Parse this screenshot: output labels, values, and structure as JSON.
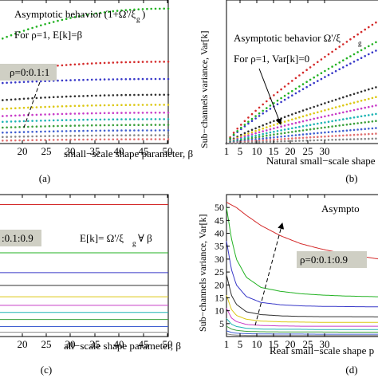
{
  "chart_data": [
    {
      "type": "scatter",
      "panel_caption": "(a)",
      "xlabel": "small−scale shape parameter, β",
      "ylabel": "",
      "xticks": [
        "20",
        "25",
        "30",
        "35",
        "40",
        "45",
        "50"
      ],
      "xlim": [
        16,
        50
      ],
      "ylim": [
        0,
        1
      ],
      "grid": false,
      "annotations": [
        "Asymptotic behavior (1+Ω'/ξ",
        "g",
        ")",
        "For ρ=1, E[k]=β",
        "ρ=0:0.1:1"
      ],
      "series": [
        {
          "color": "#22b222",
          "x": [
            16,
            50
          ],
          "y": [
            0.72,
            0.94
          ]
        },
        {
          "color": "#d42a2a",
          "x": [
            16,
            50
          ],
          "y": [
            0.5,
            0.57
          ]
        },
        {
          "color": "#3838c8",
          "x": [
            16,
            50
          ],
          "y": [
            0.42,
            0.45
          ]
        },
        {
          "color": "#303030",
          "x": [
            16,
            50
          ],
          "y": [
            0.3,
            0.34
          ]
        },
        {
          "color": "#dcc814",
          "x": [
            16,
            50
          ],
          "y": [
            0.24,
            0.27
          ]
        },
        {
          "color": "#c83cc8",
          "x": [
            16,
            50
          ],
          "y": [
            0.19,
            0.215
          ]
        },
        {
          "color": "#1eb4b4",
          "x": [
            16,
            50
          ],
          "y": [
            0.15,
            0.17
          ]
        },
        {
          "color": "#3ca03c",
          "x": [
            16,
            50
          ],
          "y": [
            0.11,
            0.13
          ]
        },
        {
          "color": "#4060d0",
          "x": [
            16,
            50
          ],
          "y": [
            0.075,
            0.092
          ]
        },
        {
          "color": "#888888",
          "x": [
            16,
            50
          ],
          "y": [
            0.045,
            0.058
          ]
        },
        {
          "color": "#e07070",
          "x": [
            16,
            50
          ],
          "y": [
            0.02,
            0.03
          ]
        }
      ]
    },
    {
      "type": "scatter",
      "panel_caption": "(b)",
      "xlabel": "Natural small−scale shape",
      "ylabel": "Sub−channels variance, Var[k]",
      "xticks": [
        "1",
        "5",
        "10",
        "15",
        "20",
        "25",
        "30"
      ],
      "xlim": [
        1,
        32
      ],
      "ylim": [
        0,
        1
      ],
      "grid": false,
      "annotations": [
        "Asymptotic behavior Ω'/ξ",
        "g",
        "For ρ=1, Var[k]=0"
      ],
      "series": [
        {
          "color": "#d42a2a",
          "x": [
            1,
            32
          ],
          "y": [
            0.0,
            0.86
          ]
        },
        {
          "color": "#3838c8",
          "x": [
            1,
            32
          ],
          "y": [
            0.0,
            0.66
          ]
        },
        {
          "color": "#22b222",
          "x": [
            1,
            32
          ],
          "y": [
            0.0,
            0.72
          ]
        },
        {
          "color": "#303030",
          "x": [
            1,
            32
          ],
          "y": [
            0.0,
            0.4
          ]
        },
        {
          "color": "#dcc814",
          "x": [
            1,
            32
          ],
          "y": [
            0.0,
            0.33
          ]
        },
        {
          "color": "#c83cc8",
          "x": [
            1,
            32
          ],
          "y": [
            0.0,
            0.27
          ]
        },
        {
          "color": "#1eb4b4",
          "x": [
            1,
            32
          ],
          "y": [
            0.0,
            0.21
          ]
        },
        {
          "color": "#3ca03c",
          "x": [
            1,
            32
          ],
          "y": [
            0.0,
            0.16
          ]
        },
        {
          "color": "#4060d0",
          "x": [
            1,
            32
          ],
          "y": [
            0.0,
            0.11
          ]
        },
        {
          "color": "#e07070",
          "x": [
            1,
            32
          ],
          "y": [
            0.0,
            0.07
          ]
        },
        {
          "color": "#888888",
          "x": [
            1,
            32
          ],
          "y": [
            0.0,
            0.035
          ]
        }
      ]
    },
    {
      "type": "line",
      "panel_caption": "(c)",
      "xlabel": "all−scale shape parameter, β",
      "ylabel": "",
      "xticks": [
        "20",
        "25",
        "30",
        "35",
        "40",
        "45",
        "50"
      ],
      "xlim": [
        16,
        50
      ],
      "ylim": [
        0,
        1
      ],
      "grid": false,
      "annotations": [
        "E[k]= Ω'/ξ",
        "g",
        " ∀ β",
        ":0.1:0.9"
      ],
      "series": [
        {
          "color": "#d42a2a",
          "x": [
            16,
            50
          ],
          "y": [
            0.93,
            0.93
          ]
        },
        {
          "color": "#22b222",
          "x": [
            16,
            50
          ],
          "y": [
            0.59,
            0.59
          ]
        },
        {
          "color": "#3838c8",
          "x": [
            16,
            50
          ],
          "y": [
            0.45,
            0.45
          ]
        },
        {
          "color": "#303030",
          "x": [
            16,
            50
          ],
          "y": [
            0.36,
            0.36
          ]
        },
        {
          "color": "#dcc814",
          "x": [
            16,
            50
          ],
          "y": [
            0.28,
            0.28
          ]
        },
        {
          "color": "#c83cc8",
          "x": [
            16,
            50
          ],
          "y": [
            0.22,
            0.22
          ]
        },
        {
          "color": "#1eb4b4",
          "x": [
            16,
            50
          ],
          "y": [
            0.17,
            0.17
          ]
        },
        {
          "color": "#3ca03c",
          "x": [
            16,
            50
          ],
          "y": [
            0.12,
            0.12
          ]
        },
        {
          "color": "#4060d0",
          "x": [
            16,
            50
          ],
          "y": [
            0.07,
            0.07
          ]
        },
        {
          "color": "#888888",
          "x": [
            16,
            50
          ],
          "y": [
            0.03,
            0.03
          ]
        }
      ]
    },
    {
      "type": "line",
      "panel_caption": "(d)",
      "xlabel": "Real small−scale shape p",
      "ylabel": "Sub−channels variance, Var[k]",
      "xticks": [
        "1",
        "5",
        "10",
        "15",
        "20",
        "25",
        "30"
      ],
      "xlim": [
        1,
        32
      ],
      "ylim": [
        0,
        55
      ],
      "yticks": [
        "5",
        "10",
        "15",
        "20",
        "25",
        "30",
        "35",
        "40",
        "45",
        "50"
      ],
      "grid": false,
      "annotations": [
        "Asympto",
        "ρ=0:0.1:0.9"
      ],
      "series": [
        {
          "color": "#d42a2a",
          "x": [
            1,
            2,
            3,
            5,
            8,
            12,
            16,
            20,
            25,
            32
          ],
          "y": [
            52,
            51,
            50,
            47,
            43,
            39,
            36,
            34,
            32,
            30
          ]
        },
        {
          "color": "#22b222",
          "x": [
            1,
            2,
            3,
            5,
            8,
            12,
            16,
            20,
            25,
            32
          ],
          "y": [
            50,
            38,
            30,
            23,
            19,
            17.5,
            16.6,
            16.1,
            15.7,
            15.4
          ]
        },
        {
          "color": "#3838c8",
          "x": [
            1,
            2,
            3,
            5,
            8,
            12,
            16,
            20,
            25,
            32
          ],
          "y": [
            37,
            26,
            20,
            15.5,
            13.2,
            12.3,
            11.9,
            11.7,
            11.6,
            11.5
          ]
        },
        {
          "color": "#303030",
          "x": [
            1,
            2,
            3,
            5,
            8,
            12,
            16,
            20,
            25,
            32
          ],
          "y": [
            24,
            16,
            12.5,
            9.6,
            8.5,
            8.0,
            7.8,
            7.7,
            7.7,
            7.6
          ]
        },
        {
          "color": "#dcc814",
          "x": [
            1,
            2,
            3,
            5,
            8,
            12,
            16,
            20,
            25,
            32
          ],
          "y": [
            16,
            10.5,
            8.2,
            6.7,
            6.0,
            5.7,
            5.6,
            5.5,
            5.5,
            5.5
          ]
        },
        {
          "color": "#c83cc8",
          "x": [
            1,
            2,
            3,
            5,
            8,
            12,
            16,
            20,
            25,
            32
          ],
          "y": [
            11,
            7.2,
            5.8,
            4.7,
            4.3,
            4.1,
            4.0,
            4.0,
            4.0,
            4.0
          ]
        },
        {
          "color": "#1eb4b4",
          "x": [
            1,
            2,
            3,
            5,
            8,
            12,
            16,
            20,
            25,
            32
          ],
          "y": [
            7,
            4.8,
            3.9,
            3.2,
            2.9,
            2.8,
            2.8,
            2.7,
            2.7,
            2.7
          ]
        },
        {
          "color": "#3ca03c",
          "x": [
            1,
            2,
            3,
            5,
            8,
            12,
            16,
            20,
            25,
            32
          ],
          "y": [
            4,
            2.9,
            2.4,
            2.0,
            1.85,
            1.8,
            1.75,
            1.75,
            1.7,
            1.7
          ]
        },
        {
          "color": "#4060d0",
          "x": [
            1,
            2,
            3,
            5,
            8,
            12,
            16,
            20,
            25,
            32
          ],
          "y": [
            2.2,
            1.6,
            1.3,
            1.1,
            1.0,
            0.95,
            0.95,
            0.9,
            0.9,
            0.9
          ]
        },
        {
          "color": "#888888",
          "x": [
            1,
            2,
            3,
            5,
            8,
            12,
            16,
            20,
            25,
            32
          ],
          "y": [
            1.0,
            0.7,
            0.55,
            0.45,
            0.4,
            0.4,
            0.4,
            0.4,
            0.4,
            0.4
          ]
        }
      ]
    }
  ]
}
